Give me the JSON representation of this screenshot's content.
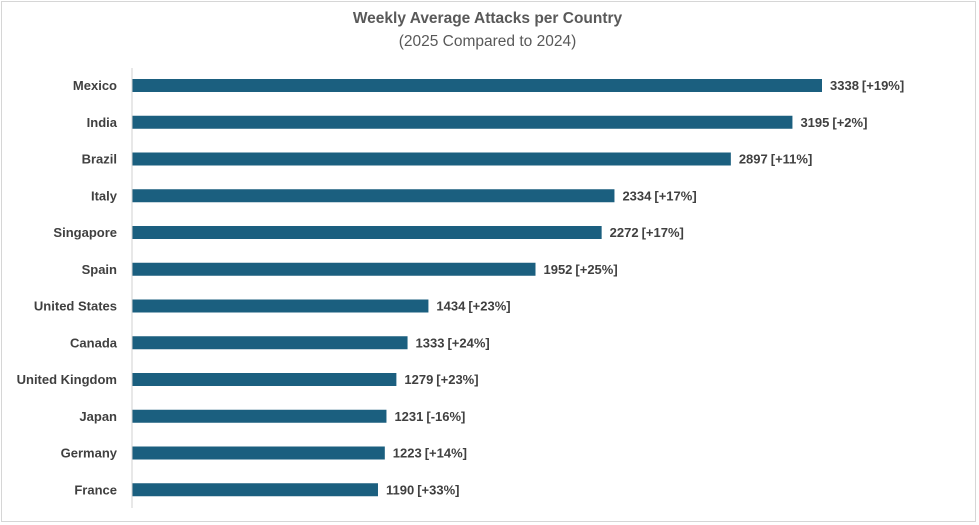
{
  "chart_data": {
    "type": "bar",
    "orientation": "horizontal",
    "title": "Weekly Average Attacks per Country",
    "subtitle": "(2025 Compared to 2024)",
    "xlabel": "",
    "ylabel": "",
    "xlim": [
      0,
      3338
    ],
    "grid": false,
    "legend": "none",
    "bar_color": "#1b5f7f",
    "categories": [
      "Mexico",
      "India",
      "Brazil",
      "Italy",
      "Singapore",
      "Spain",
      "United States",
      "Canada",
      "United Kingdom",
      "Japan",
      "Germany",
      "France"
    ],
    "values": [
      3338,
      3195,
      2897,
      2334,
      2272,
      1952,
      1434,
      1333,
      1279,
      1231,
      1223,
      1190
    ],
    "changes": [
      "[+19%]",
      "[+2%]",
      "[+11%]",
      "[+17%]",
      "[+17%]",
      "[+25%]",
      "[+23%]",
      "[+24%]",
      "[+23%]",
      "[-16%]",
      "[+14%]",
      "[+33%]"
    ]
  }
}
